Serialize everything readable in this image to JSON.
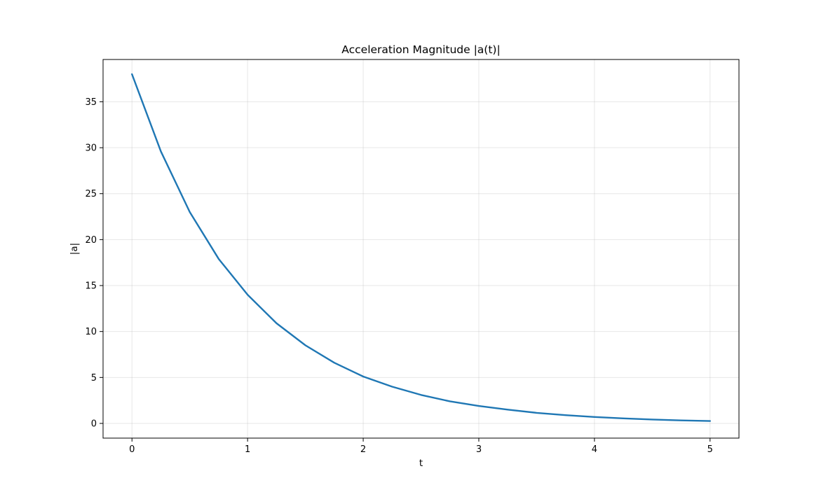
{
  "chart_data": {
    "type": "line",
    "title": "Acceleration Magnitude |a(t)|",
    "xlabel": "t",
    "ylabel": "|a|",
    "xlim": [
      -0.25,
      5.25
    ],
    "ylim": [
      -1.6,
      39.6
    ],
    "x_ticks": [
      0,
      1,
      2,
      3,
      4,
      5
    ],
    "y_ticks": [
      0,
      5,
      10,
      15,
      20,
      25,
      30,
      35
    ],
    "x_tick_labels": [
      "0",
      "1",
      "2",
      "3",
      "4",
      "5"
    ],
    "y_tick_labels": [
      "0",
      "5",
      "10",
      "15",
      "20",
      "25",
      "30",
      "35"
    ],
    "grid": true,
    "series": [
      {
        "color": "#1f77b4",
        "x": [
          0,
          0.25,
          0.5,
          0.75,
          1,
          1.25,
          1.5,
          1.75,
          2,
          2.25,
          2.5,
          2.75,
          3,
          3.25,
          3.5,
          3.75,
          4,
          4.25,
          4.5,
          4.75,
          5
        ],
        "y": [
          38.0,
          29.6,
          23.0,
          17.9,
          14.0,
          10.9,
          8.5,
          6.6,
          5.1,
          4.0,
          3.1,
          2.4,
          1.9,
          1.5,
          1.15,
          0.9,
          0.7,
          0.55,
          0.42,
          0.33,
          0.26
        ]
      }
    ]
  }
}
